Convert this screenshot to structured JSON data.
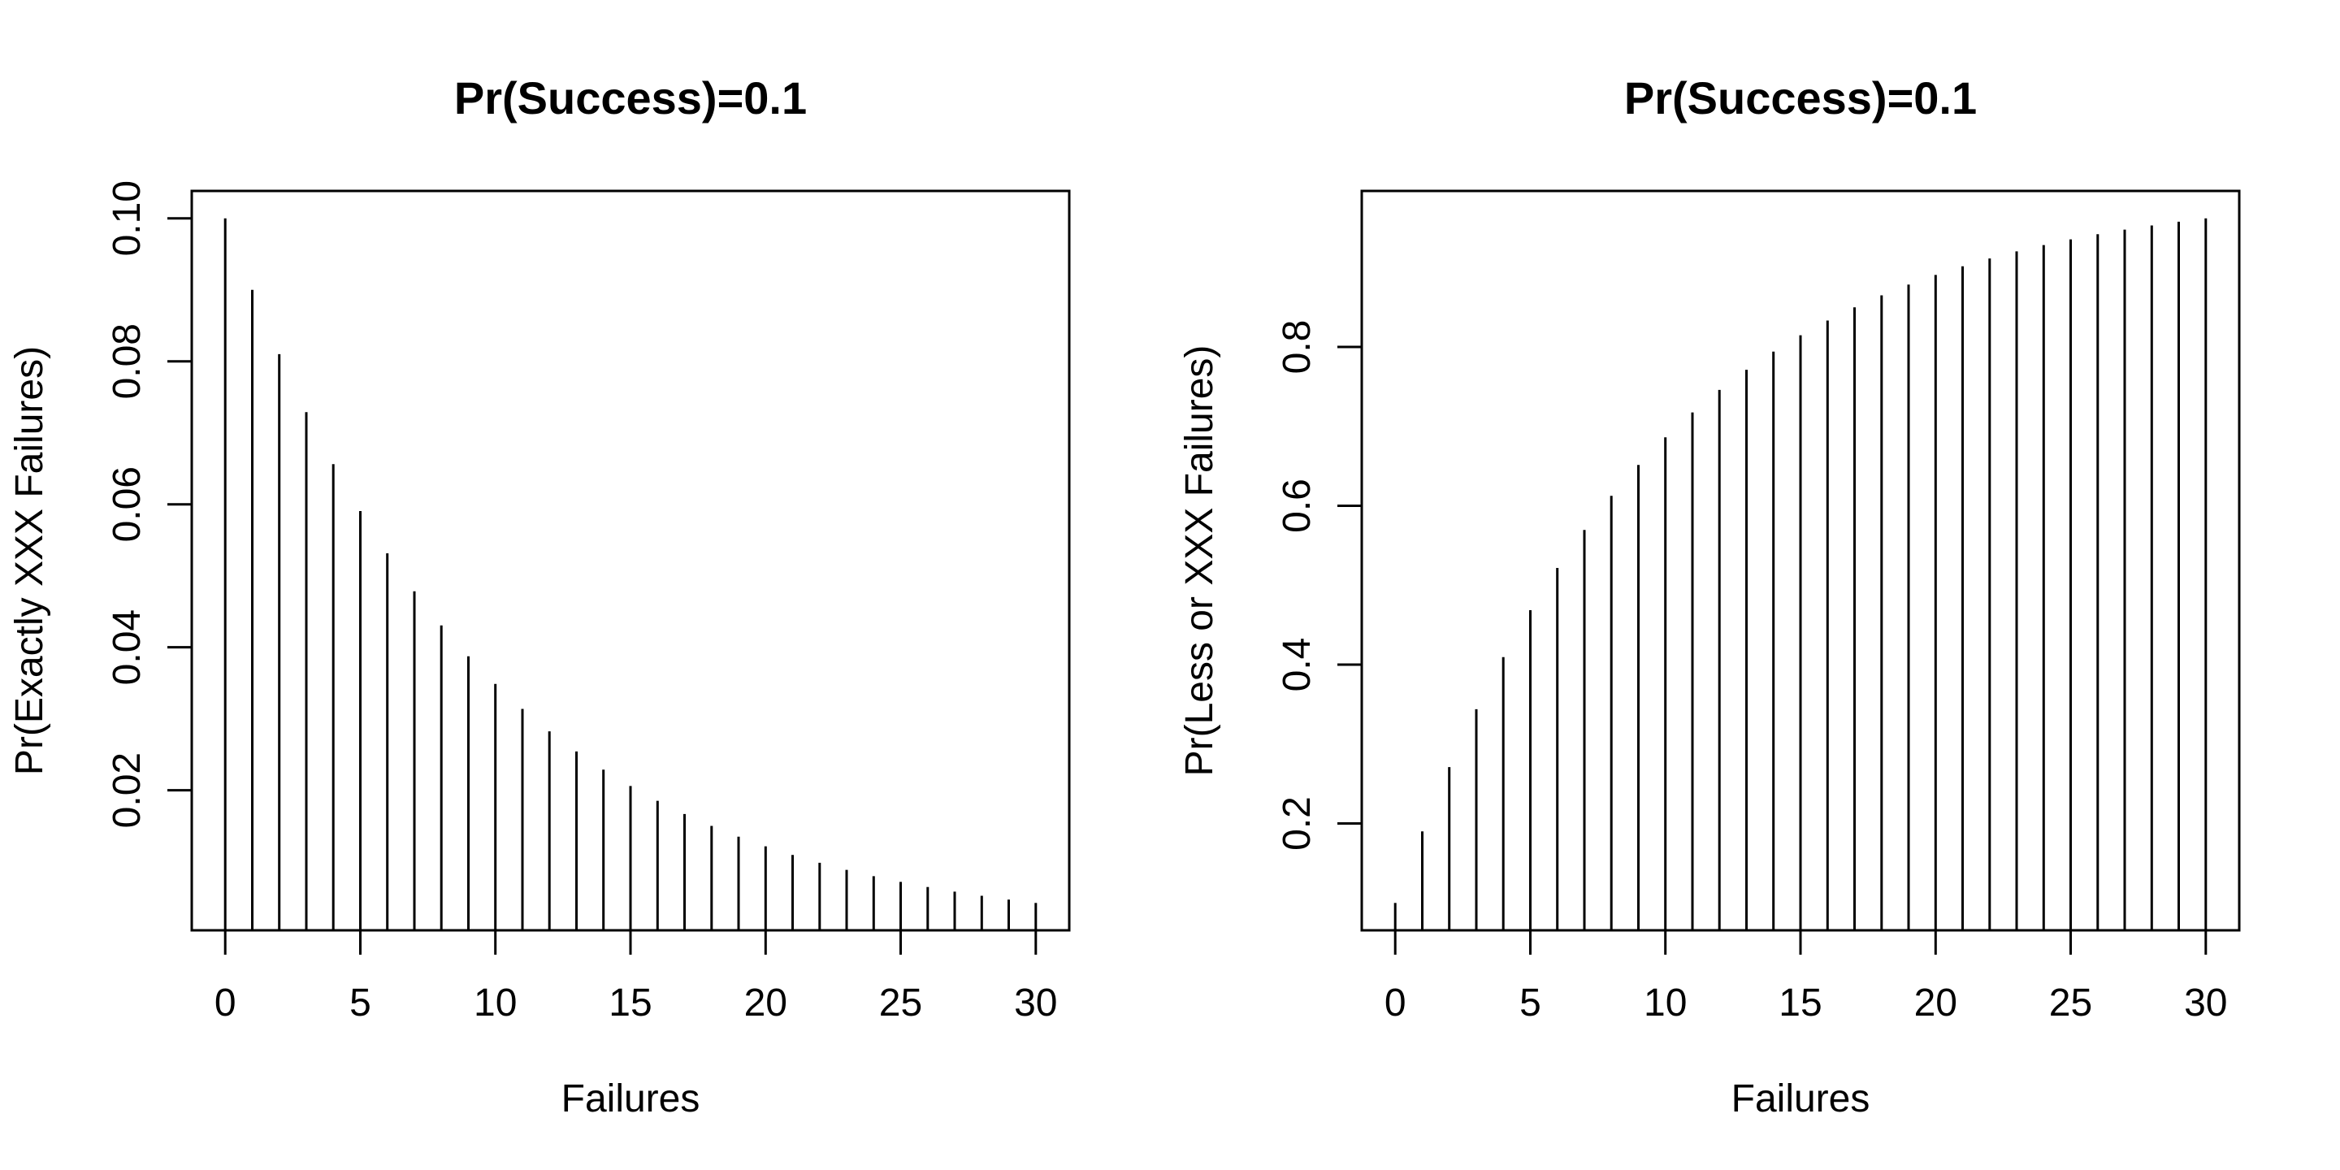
{
  "figure": {
    "background_color": "#ffffff",
    "line_color": "#000000",
    "description": "Two R-style spike plots of the geometric distribution with success probability 0.1: PMF (left) and CDF (right)"
  },
  "chart_data": [
    {
      "type": "bar",
      "style": "vertical-spikes (R type='h')",
      "title": "Pr(Success)=0.1",
      "xlabel": "Failures",
      "ylabel": "Pr(Exactly XXX Failures)",
      "x": [
        0,
        1,
        2,
        3,
        4,
        5,
        6,
        7,
        8,
        9,
        10,
        11,
        12,
        13,
        14,
        15,
        16,
        17,
        18,
        19,
        20,
        21,
        22,
        23,
        24,
        25,
        26,
        27,
        28,
        29,
        30
      ],
      "values": [
        0.1,
        0.09,
        0.081,
        0.0729,
        0.06561,
        0.059049,
        0.0531441,
        0.0478297,
        0.0430467,
        0.038742,
        0.0348678,
        0.0313811,
        0.028243,
        0.0254187,
        0.0228768,
        0.0205891,
        0.0185302,
        0.0166772,
        0.0150095,
        0.0135085,
        0.0121577,
        0.0109419,
        0.0098477,
        0.0088629,
        0.0079766,
        0.007179,
        0.0064611,
        0.005815,
        0.0052335,
        0.0047101,
        0.0042391
      ],
      "xlim": [
        -1.24,
        31.24
      ],
      "ylim": [
        0.000409,
        0.103831
      ],
      "xtick_values": [
        0,
        5,
        10,
        15,
        20,
        25,
        30
      ],
      "xtick_labels": [
        "0",
        "5",
        "10",
        "15",
        "20",
        "25",
        "30"
      ],
      "ytick_values": [
        0.02,
        0.04,
        0.06,
        0.08,
        0.1
      ],
      "ytick_labels": [
        "0.02",
        "0.04",
        "0.06",
        "0.08",
        "0.10"
      ],
      "grid": false,
      "legend": null
    },
    {
      "type": "bar",
      "style": "vertical-spikes (R type='h')",
      "title": "Pr(Success)=0.1",
      "xlabel": "Failures",
      "ylabel": "Pr(Less or XXX Failures)",
      "x": [
        0,
        1,
        2,
        3,
        4,
        5,
        6,
        7,
        8,
        9,
        10,
        11,
        12,
        13,
        14,
        15,
        16,
        17,
        18,
        19,
        20,
        21,
        22,
        23,
        24,
        25,
        26,
        27,
        28,
        29,
        30
      ],
      "values": [
        0.1,
        0.19,
        0.271,
        0.3439,
        0.40951,
        0.468559,
        0.5217031,
        0.5695328,
        0.6125795,
        0.6513216,
        0.6861894,
        0.7175705,
        0.7458134,
        0.7712321,
        0.7941089,
        0.814698,
        0.8332282,
        0.8499054,
        0.8649148,
        0.8784233,
        0.890581,
        0.9015229,
        0.9113706,
        0.9202336,
        0.9282102,
        0.9353892,
        0.9418503,
        0.9476652,
        0.9528987,
        0.9576088,
        0.961848
      ],
      "xlim": [
        -1.24,
        31.24
      ],
      "ylim": [
        0.065535,
        0.996362
      ],
      "xtick_values": [
        0,
        5,
        10,
        15,
        20,
        25,
        30
      ],
      "xtick_labels": [
        "0",
        "5",
        "10",
        "15",
        "20",
        "25",
        "30"
      ],
      "ytick_values": [
        0.2,
        0.4,
        0.6,
        0.8
      ],
      "ytick_labels": [
        "0.2",
        "0.4",
        "0.6",
        "0.8"
      ],
      "grid": false,
      "legend": null
    }
  ]
}
